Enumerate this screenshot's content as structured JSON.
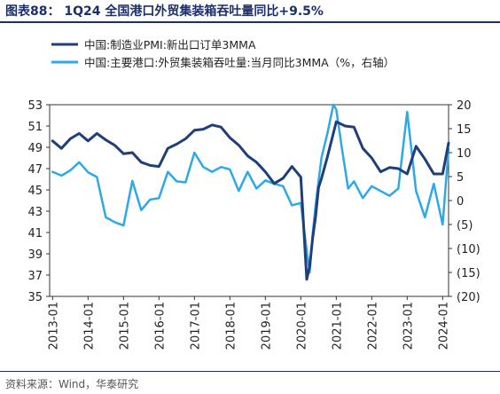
{
  "header": {
    "title": "图表88：  1Q24 全国港口外贸集装箱吞吐量同比+9.5%"
  },
  "footer": {
    "source": "资料来源：Wind，华泰研究"
  },
  "colors": {
    "pmi": "#1f3f7a",
    "port": "#2ea9e6",
    "title": "#1c2f6b"
  },
  "chart_data": {
    "type": "line",
    "title": "",
    "xlabel": "",
    "ylabel": "",
    "x_type": "date",
    "xlim": [
      "2012-12-01",
      "2024-03-01"
    ],
    "x_ticks": [
      "2013-01",
      "2014-01",
      "2015-01",
      "2016-01",
      "2017-01",
      "2018-01",
      "2019-01",
      "2020-01",
      "2021-01",
      "2022-01",
      "2023-01",
      "2024-01"
    ],
    "left_axis": {
      "min": 35,
      "max": 53,
      "ticks": [
        "53",
        "51",
        "49",
        "47",
        "45",
        "43",
        "41",
        "39",
        "37",
        "35"
      ]
    },
    "right_axis": {
      "min": -20,
      "max": 20,
      "ticks": [
        "20",
        "15",
        "10",
        "5",
        "0",
        "(5)",
        "(10)",
        "(15)",
        "(20)"
      ]
    },
    "legend": {
      "position": "top-left"
    },
    "series": [
      {
        "name": "中国:制造业PMI:新出口订单3MMA",
        "axis": "left",
        "x": [
          "2013-01",
          "2013-04",
          "2013-07",
          "2013-10",
          "2014-01",
          "2014-04",
          "2014-07",
          "2014-10",
          "2015-01",
          "2015-04",
          "2015-07",
          "2015-10",
          "2016-01",
          "2016-04",
          "2016-07",
          "2016-10",
          "2017-01",
          "2017-04",
          "2017-07",
          "2017-10",
          "2018-01",
          "2018-04",
          "2018-07",
          "2018-10",
          "2019-01",
          "2019-04",
          "2019-07",
          "2019-10",
          "2020-01",
          "2020-03",
          "2020-04",
          "2020-05",
          "2020-06",
          "2020-07",
          "2020-08",
          "2020-10",
          "2021-01",
          "2021-04",
          "2021-07",
          "2021-10",
          "2022-01",
          "2022-04",
          "2022-07",
          "2022-10",
          "2023-01",
          "2023-04",
          "2023-07",
          "2023-10",
          "2024-01",
          "2024-03"
        ],
        "y": [
          49.6,
          48.9,
          49.8,
          50.3,
          49.6,
          50.3,
          49.7,
          49.2,
          48.4,
          48.5,
          47.6,
          47.3,
          47.2,
          48.9,
          49.3,
          49.8,
          50.6,
          50.7,
          51.1,
          50.9,
          49.9,
          49.2,
          48.2,
          47.6,
          46.7,
          45.6,
          46.1,
          47.2,
          46.2,
          36.6,
          37.8,
          40.5,
          42.5,
          45.2,
          46.1,
          48.1,
          51.4,
          51.0,
          50.9,
          48.9,
          48.0,
          46.7,
          47.1,
          47.0,
          46.5,
          49.1,
          47.9,
          46.5,
          46.5,
          49.4
        ]
      },
      {
        "name": "中国:主要港口:外贸集装箱吞吐量:当月同比3MMA（%，右轴）",
        "axis": "right",
        "x": [
          "2013-01",
          "2013-04",
          "2013-07",
          "2013-10",
          "2014-01",
          "2014-04",
          "2014-07",
          "2014-10",
          "2015-01",
          "2015-04",
          "2015-07",
          "2015-10",
          "2016-01",
          "2016-04",
          "2016-07",
          "2016-10",
          "2017-01",
          "2017-04",
          "2017-07",
          "2017-10",
          "2018-01",
          "2018-04",
          "2018-07",
          "2018-10",
          "2019-01",
          "2019-04",
          "2019-07",
          "2019-10",
          "2020-01",
          "2020-03",
          "2020-04",
          "2020-05",
          "2020-06",
          "2020-07",
          "2020-08",
          "2020-10",
          "2020-12",
          "2021-01",
          "2021-03",
          "2021-05",
          "2021-07",
          "2021-10",
          "2022-01",
          "2022-04",
          "2022-07",
          "2022-10",
          "2023-01",
          "2023-04",
          "2023-07",
          "2023-10",
          "2024-01",
          "2024-03"
        ],
        "y": [
          6.0,
          5.2,
          6.3,
          8.0,
          5.9,
          4.9,
          -3.5,
          -4.5,
          -5.2,
          4.1,
          -2.0,
          0.2,
          0.5,
          6.0,
          4.0,
          3.8,
          10.0,
          7.0,
          6.0,
          7.0,
          6.5,
          2.0,
          6.0,
          2.5,
          4.2,
          3.5,
          3.0,
          -1.0,
          -0.5,
          -10.5,
          -15.0,
          -7.0,
          -1.0,
          4.0,
          9.0,
          14.0,
          20.0,
          19.0,
          10.5,
          2.5,
          4.0,
          0.5,
          3.0,
          2.0,
          1.0,
          2.5,
          18.5,
          2.0,
          -3.5,
          3.5,
          -5.0,
          10.8
        ]
      }
    ]
  }
}
